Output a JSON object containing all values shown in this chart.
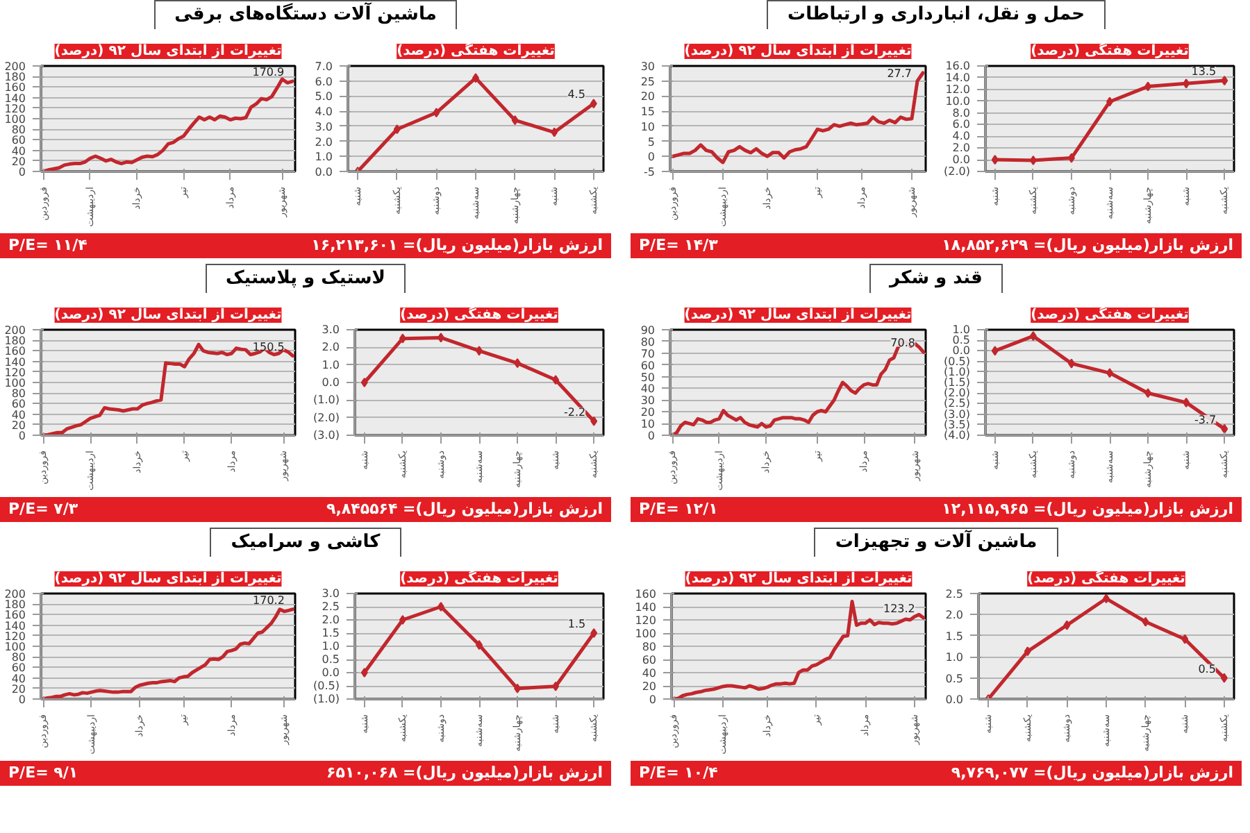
{
  "chart_data": [
    {
      "type": "other",
      "title": "حمل و نقل، انبارداری و ارتباطات",
      "annotations": [
        "ارزش بازار(میلیون ریال)= ۱۸,۸۵۲,۶۲۹",
        "P/E= ۱۴/۳"
      ]
    },
    {
      "type": "line",
      "title": "تغییرات هفتگی (درصد)",
      "categories": [
        "شنبه",
        "یکشنبه",
        "دوشنبه",
        "سه‌شنبه",
        "چهارشنبه",
        "شنبه",
        "یکشنبه"
      ],
      "values": [
        0.0,
        -0.1,
        0.3,
        9.9,
        12.5,
        13.0,
        13.5
      ],
      "value_labels": [
        null,
        null,
        null,
        null,
        null,
        null,
        "13.5"
      ],
      "color": "#c1272d",
      "ylim": [
        -2,
        16
      ],
      "yticks": [
        {
          "value": -2,
          "label": "(2.0)"
        },
        {
          "value": 0,
          "label": "0.0"
        },
        {
          "value": 2,
          "label": "2.0"
        },
        {
          "value": 4,
          "label": "4.0"
        },
        {
          "value": 6,
          "label": "6.0"
        },
        {
          "value": 8,
          "label": "8.0"
        },
        {
          "value": 10,
          "label": "10.0"
        },
        {
          "value": 12,
          "label": "12.0"
        },
        {
          "value": 14,
          "label": "14.0"
        },
        {
          "value": 16,
          "label": "16.0"
        }
      ],
      "grid": "y",
      "marker": "diamond"
    },
    {
      "type": "line",
      "title": "تغییرات از ابتدای سال ۹۲ (درصد)",
      "categories": [
        "فروردین",
        null,
        null,
        null,
        null,
        null,
        null,
        null,
        null,
        "اردیبهشت",
        null,
        null,
        null,
        null,
        null,
        null,
        null,
        "خرداد",
        null,
        null,
        null,
        null,
        null,
        null,
        null,
        null,
        "تیر",
        null,
        null,
        null,
        null,
        null,
        null,
        null,
        "مرداد",
        null,
        null,
        null,
        null,
        null,
        null,
        null,
        null,
        "شهریور",
        null,
        null
      ],
      "values": [
        0,
        0.5,
        1,
        1,
        2,
        3.8,
        2,
        1.5,
        -0.5,
        -2,
        1.5,
        2,
        3.2,
        2,
        1.2,
        2.5,
        1,
        0,
        1.3,
        1.3,
        -0.5,
        1.5,
        2.2,
        2.5,
        3.2,
        6,
        9,
        8.5,
        9,
        10.5,
        10,
        10.5,
        11,
        10.5,
        10.7,
        11,
        13,
        11.5,
        11,
        12,
        11.2,
        13,
        12.3,
        12.5,
        25,
        27.7
      ],
      "color": "#c1272d",
      "ylim": [
        -5,
        30
      ],
      "yticks": [
        -5,
        0,
        5,
        10,
        15,
        20,
        25,
        30
      ],
      "grid": "y",
      "marker": "none",
      "value_labels": [
        null,
        null,
        null,
        null,
        null,
        null,
        null,
        null,
        null,
        null,
        null,
        null,
        null,
        null,
        null,
        null,
        null,
        null,
        null,
        null,
        null,
        null,
        null,
        null,
        null,
        null,
        null,
        null,
        null,
        null,
        null,
        null,
        null,
        null,
        null,
        null,
        null,
        null,
        null,
        null,
        null,
        null,
        null,
        null,
        null,
        "27.7"
      ]
    },
    {
      "type": "other",
      "title": "ماشین آلات دستگاه‌های برقی",
      "annotations": [
        "ارزش بازار(میلیون ریال)= ۱۶,۲۱۳,۶۰۱",
        "P/E= ۱۱/۴"
      ]
    },
    {
      "type": "line",
      "title": "تغییرات هفتگی (درصد)",
      "categories": [
        "شنبه",
        "یکشنبه",
        "دوشنبه",
        "سه‌شنبه",
        "چهارشنبه",
        "شنبه",
        "یکشنبه"
      ],
      "values": [
        0.0,
        2.8,
        3.9,
        6.2,
        3.4,
        2.6,
        4.5
      ],
      "value_labels": [
        null,
        null,
        null,
        null,
        null,
        null,
        "4.5"
      ],
      "color": "#c1272d",
      "ylim": [
        0,
        7
      ],
      "yticks": [
        {
          "value": 0,
          "label": "0.0"
        },
        {
          "value": 1,
          "label": "1.0"
        },
        {
          "value": 2,
          "label": "2.0"
        },
        {
          "value": 3,
          "label": "3.0"
        },
        {
          "value": 4,
          "label": "4.0"
        },
        {
          "value": 5,
          "label": "5.0"
        },
        {
          "value": 6,
          "label": "6.0"
        },
        {
          "value": 7,
          "label": "7.0"
        }
      ],
      "grid": "y",
      "marker": "diamond"
    },
    {
      "type": "line",
      "title": "تغییرات از ابتدای سال ۹۲ (درصد)",
      "categories": [
        "فروردین",
        null,
        null,
        null,
        null,
        null,
        null,
        null,
        null,
        "اردیبهشت",
        null,
        null,
        null,
        null,
        null,
        null,
        null,
        null,
        "خرداد",
        null,
        null,
        null,
        null,
        null,
        null,
        null,
        null,
        "تیر",
        null,
        null,
        null,
        null,
        null,
        null,
        null,
        null,
        "مرداد",
        null,
        null,
        null,
        null,
        null,
        null,
        null,
        null,
        null,
        "شهریور",
        null,
        null
      ],
      "values": [
        0,
        3,
        5,
        7,
        12,
        14,
        15,
        15,
        18,
        25,
        29,
        25,
        20,
        23,
        18,
        15,
        18,
        17,
        22,
        27,
        29,
        28,
        32,
        40,
        52,
        55,
        62,
        67,
        80,
        92,
        103,
        98,
        103,
        98,
        105,
        103,
        98,
        101,
        100,
        102,
        122,
        128,
        138,
        136,
        142,
        158,
        175,
        168,
        170.9
      ],
      "color": "#c1272d",
      "ylim": [
        0,
        200
      ],
      "yticks": [
        0,
        20,
        40,
        60,
        80,
        100,
        120,
        140,
        160,
        180,
        200
      ],
      "grid": "y",
      "marker": "none",
      "value_labels": [
        null,
        null,
        null,
        null,
        null,
        null,
        null,
        null,
        null,
        null,
        null,
        null,
        null,
        null,
        null,
        null,
        null,
        null,
        null,
        null,
        null,
        null,
        null,
        null,
        null,
        null,
        null,
        null,
        null,
        null,
        null,
        null,
        null,
        null,
        null,
        null,
        null,
        null,
        null,
        null,
        null,
        null,
        null,
        null,
        null,
        null,
        null,
        null,
        "170.9"
      ]
    },
    {
      "type": "other",
      "title": "قند و شکر",
      "annotations": [
        "ارزش بازار(میلیون ریال)= ۱۲,۱۱۵,۹۶۵",
        "P/E= ۱۲/۱"
      ]
    },
    {
      "type": "line",
      "title": "تغییرات هفتگی (درصد)",
      "categories": [
        "شنبه",
        "یکشنبه",
        "دوشنبه",
        "سه‌شنبه",
        "چهارشنبه",
        "شنبه",
        "یکشنبه"
      ],
      "values": [
        0.0,
        0.7,
        -0.6,
        -1.05,
        -2.0,
        -2.45,
        -3.7
      ],
      "value_labels": [
        null,
        null,
        null,
        null,
        null,
        null,
        "-3.7"
      ],
      "color": "#c1272d",
      "ylim": [
        -4,
        1
      ],
      "yticks": [
        {
          "value": -4,
          "label": "(4.0)"
        },
        {
          "value": -3.5,
          "label": "(3.5)"
        },
        {
          "value": -3,
          "label": "(3.0)"
        },
        {
          "value": -2.5,
          "label": "(2.5)"
        },
        {
          "value": -2,
          "label": "(2.0)"
        },
        {
          "value": -1.5,
          "label": "(1.5)"
        },
        {
          "value": -1,
          "label": "(1.0)"
        },
        {
          "value": -0.5,
          "label": "(0.5)"
        },
        {
          "value": 0,
          "label": "0.0"
        },
        {
          "value": 0.5,
          "label": "0.5"
        },
        {
          "value": 1,
          "label": "1.0"
        }
      ],
      "grid": "y",
      "marker": "diamond"
    },
    {
      "type": "line",
      "title": "تغییرات از ابتدای سال ۹۲ (درصد)",
      "categories": [
        "فروردین",
        null,
        null,
        null,
        null,
        null,
        null,
        null,
        null,
        null,
        null,
        "اردیبهشت",
        null,
        null,
        null,
        null,
        null,
        null,
        null,
        null,
        null,
        null,
        "خرداد",
        null,
        null,
        null,
        null,
        null,
        null,
        null,
        null,
        null,
        null,
        null,
        "تیر",
        null,
        null,
        null,
        null,
        null,
        null,
        null,
        null,
        null,
        null,
        "مرداد",
        null,
        null,
        null,
        null,
        null,
        null,
        null,
        null,
        null,
        null,
        null,
        "شهریور",
        null,
        null
      ],
      "values": [
        0,
        2,
        8,
        11,
        10,
        9,
        14,
        13,
        11,
        11,
        13,
        14,
        21,
        17,
        15,
        13,
        15,
        11,
        9,
        8,
        7,
        10,
        7,
        8,
        13,
        14,
        15,
        15,
        15,
        14,
        14,
        13,
        11,
        17,
        20,
        21,
        20,
        25,
        30,
        38,
        45,
        42,
        38,
        36,
        40,
        43,
        44,
        43,
        43,
        52,
        56,
        64,
        66,
        75,
        81,
        79,
        76,
        78,
        75,
        70.8
      ],
      "color": "#c1272d",
      "ylim": [
        0,
        90
      ],
      "yticks": [
        0,
        10,
        20,
        30,
        40,
        50,
        60,
        70,
        80,
        90
      ],
      "grid": "y",
      "marker": "none",
      "value_labels": [
        null,
        null,
        null,
        null,
        null,
        null,
        null,
        null,
        null,
        null,
        null,
        null,
        null,
        null,
        null,
        null,
        null,
        null,
        null,
        null,
        null,
        null,
        null,
        null,
        null,
        null,
        null,
        null,
        null,
        null,
        null,
        null,
        null,
        null,
        null,
        null,
        null,
        null,
        null,
        null,
        null,
        null,
        null,
        null,
        null,
        null,
        null,
        null,
        null,
        null,
        null,
        null,
        null,
        null,
        null,
        null,
        null,
        null,
        null,
        "70.8"
      ]
    },
    {
      "type": "other",
      "title": "لاستیک و پلاستیک",
      "annotations": [
        "ارزش بازار(میلیون ریال)= ۹,۸۴۵۵۶۴",
        "P/E= ۷/۳"
      ]
    },
    {
      "type": "line",
      "title": "تغییرات هفتگی (درصد)",
      "categories": [
        "شنبه",
        "یکشنبه",
        "دوشنبه",
        "سه‌شنبه",
        "چهارشنبه",
        "شنبه",
        "یکشنبه"
      ],
      "values": [
        0.0,
        2.5,
        2.55,
        1.8,
        1.1,
        0.15,
        -2.2
      ],
      "value_labels": [
        null,
        null,
        null,
        null,
        null,
        null,
        "-2.2"
      ],
      "color": "#c1272d",
      "ylim": [
        -3,
        3
      ],
      "yticks": [
        {
          "value": -3,
          "label": "(3.0)"
        },
        {
          "value": -2,
          "label": "(2.0)"
        },
        {
          "value": -1,
          "label": "(1.0)"
        },
        {
          "value": 0,
          "label": "0.0"
        },
        {
          "value": 1,
          "label": "1.0"
        },
        {
          "value": 2,
          "label": "2.0"
        },
        {
          "value": 3,
          "label": "3.0"
        }
      ],
      "grid": "y",
      "marker": "diamond"
    },
    {
      "type": "line",
      "title": "تغییرات از ابتدای سال ۹۲ (درصد)",
      "categories": [
        "فروردین",
        null,
        null,
        null,
        null,
        null,
        null,
        null,
        null,
        null,
        "اردیبهشت",
        null,
        null,
        null,
        null,
        null,
        null,
        null,
        null,
        null,
        "خرداد",
        null,
        null,
        null,
        null,
        null,
        null,
        null,
        null,
        null,
        "تیر",
        null,
        null,
        null,
        null,
        null,
        null,
        null,
        null,
        null,
        "مرداد",
        null,
        null,
        null,
        null,
        null,
        null,
        null,
        null,
        null,
        null,
        "شهریور",
        null,
        null
      ],
      "values": [
        0,
        1,
        3,
        5,
        5,
        12,
        15,
        18,
        20,
        26,
        32,
        35,
        38,
        52,
        50,
        49,
        48,
        46,
        48,
        50,
        50,
        57,
        60,
        62,
        65,
        67,
        137,
        136,
        135,
        135,
        130,
        145,
        155,
        172,
        160,
        157,
        156,
        155,
        157,
        153,
        155,
        165,
        163,
        162,
        153,
        155,
        158,
        165,
        157,
        153,
        155,
        162,
        158,
        150.5
      ],
      "color": "#c1272d",
      "ylim": [
        0,
        200
      ],
      "yticks": [
        0,
        20,
        40,
        60,
        80,
        100,
        120,
        140,
        160,
        180,
        200
      ],
      "grid": "y",
      "marker": "none",
      "value_labels": [
        null,
        null,
        null,
        null,
        null,
        null,
        null,
        null,
        null,
        null,
        null,
        null,
        null,
        null,
        null,
        null,
        null,
        null,
        null,
        null,
        null,
        null,
        null,
        null,
        null,
        null,
        null,
        null,
        null,
        null,
        null,
        null,
        null,
        null,
        null,
        null,
        null,
        null,
        null,
        null,
        null,
        null,
        null,
        null,
        null,
        null,
        null,
        null,
        null,
        null,
        null,
        null,
        null,
        "150.5"
      ]
    },
    {
      "type": "other",
      "title": "ماشین آلات و تجهیزات",
      "annotations": [
        "ارزش بازار(میلیون ریال)= ۹,۷۶۹,۰۷۷",
        "P/E= ۱۰/۴"
      ]
    },
    {
      "type": "line",
      "title": "تغییرات هفتگی (درصد)",
      "categories": [
        "شنبه",
        "یکشنبه",
        "دوشنبه",
        "سه‌شنبه",
        "چهارشنبه",
        "شنبه",
        "یکشنبه"
      ],
      "values": [
        0.0,
        1.13,
        1.75,
        2.38,
        1.83,
        1.42,
        0.5
      ],
      "value_labels": [
        null,
        null,
        null,
        null,
        null,
        null,
        "0.5"
      ],
      "color": "#c1272d",
      "ylim": [
        0,
        2.5
      ],
      "yticks": [
        {
          "value": 0,
          "label": "0.0"
        },
        {
          "value": 0.5,
          "label": "0.5"
        },
        {
          "value": 1,
          "label": "1.0"
        },
        {
          "value": 1.5,
          "label": "1.5"
        },
        {
          "value": 2,
          "label": "2.0"
        },
        {
          "value": 2.5,
          "label": "2.5"
        }
      ],
      "grid": "y",
      "marker": "diamond"
    },
    {
      "type": "line",
      "title": "تغییرات از ابتدای سال ۹۲ (درصد)",
      "categories": [
        "فروردین",
        null,
        null,
        null,
        null,
        null,
        null,
        null,
        null,
        null,
        null,
        "اردیبهشت",
        null,
        null,
        null,
        null,
        null,
        null,
        null,
        null,
        null,
        "خرداد",
        null,
        null,
        null,
        null,
        null,
        null,
        null,
        null,
        null,
        null,
        "تیر",
        null,
        null,
        null,
        null,
        null,
        null,
        null,
        null,
        null,
        null,
        "مرداد",
        null,
        null,
        null,
        null,
        null,
        null,
        null,
        null,
        null,
        null,
        "شهریور",
        null,
        null
      ],
      "values": [
        0,
        1,
        5,
        7,
        8,
        10,
        11,
        13,
        14,
        15,
        17,
        19,
        20,
        20,
        19,
        18,
        17,
        20,
        18,
        15,
        16,
        18,
        21,
        23,
        23,
        24,
        23,
        24,
        40,
        44,
        44,
        50,
        52,
        56,
        60,
        63,
        75,
        85,
        95,
        96,
        148,
        112,
        115,
        115,
        120,
        113,
        116,
        115,
        115,
        114,
        115,
        118,
        121,
        120,
        125,
        128,
        123.2
      ],
      "color": "#c1272d",
      "ylim": [
        0,
        160
      ],
      "yticks": [
        0,
        20,
        40,
        60,
        80,
        100,
        120,
        140,
        160
      ],
      "grid": "y",
      "marker": "none",
      "value_labels": [
        null,
        null,
        null,
        null,
        null,
        null,
        null,
        null,
        null,
        null,
        null,
        null,
        null,
        null,
        null,
        null,
        null,
        null,
        null,
        null,
        null,
        null,
        null,
        null,
        null,
        null,
        null,
        null,
        null,
        null,
        null,
        null,
        null,
        null,
        null,
        null,
        null,
        null,
        null,
        null,
        null,
        null,
        null,
        null,
        null,
        null,
        null,
        null,
        null,
        null,
        null,
        null,
        null,
        null,
        null,
        null,
        "123.2"
      ]
    },
    {
      "type": "other",
      "title": "کاشی و سرامیک",
      "annotations": [
        "ارزش بازار(میلیون ریال)= ۶۵۱۰,۰۶۸",
        "P/E= ۹/۱"
      ]
    },
    {
      "type": "line",
      "title": "تغییرات هفتگی (درصد)",
      "categories": [
        "شنبه",
        "یکشنبه",
        "دوشنبه",
        "سه‌شنبه",
        "چهارشنبه",
        "شنبه",
        "یکشنبه"
      ],
      "values": [
        0.0,
        2.0,
        2.5,
        1.05,
        -0.6,
        -0.52,
        1.5
      ],
      "value_labels": [
        null,
        null,
        null,
        null,
        null,
        null,
        "1.5"
      ],
      "color": "#c1272d",
      "ylim": [
        -1,
        3
      ],
      "yticks": [
        {
          "value": -1,
          "label": "(1.0)"
        },
        {
          "value": -0.5,
          "label": "(0.5)"
        },
        {
          "value": 0,
          "label": "0.0"
        },
        {
          "value": 0.5,
          "label": "0.5"
        },
        {
          "value": 1,
          "label": "1.0"
        },
        {
          "value": 1.5,
          "label": "1.5"
        },
        {
          "value": 2,
          "label": "2.0"
        },
        {
          "value": 2.5,
          "label": "2.5"
        },
        {
          "value": 3,
          "label": "3.0"
        }
      ],
      "grid": "y",
      "marker": "diamond"
    },
    {
      "type": "line",
      "title": "تغییرات از ابتدای سال ۹۲ (درصد)",
      "categories": [
        "فروردین",
        null,
        null,
        null,
        null,
        null,
        null,
        null,
        null,
        null,
        null,
        "اردیبهشت",
        null,
        null,
        null,
        null,
        null,
        null,
        null,
        null,
        null,
        null,
        "خرداد",
        null,
        null,
        null,
        null,
        null,
        null,
        null,
        null,
        null,
        "تیر",
        null,
        null,
        null,
        null,
        null,
        null,
        null,
        null,
        null,
        null,
        "مرداد",
        null,
        null,
        null,
        null,
        null,
        null,
        null,
        null,
        null,
        null,
        null,
        "شهریور",
        null,
        null
      ],
      "values": [
        0,
        2,
        3,
        5,
        5,
        8,
        10,
        8,
        9,
        12,
        11,
        13,
        15,
        16,
        15,
        14,
        13,
        13,
        14,
        14,
        14,
        22,
        26,
        28,
        30,
        31,
        31,
        33,
        34,
        35,
        33,
        40,
        42,
        43,
        50,
        55,
        60,
        65,
        75,
        76,
        75,
        80,
        90,
        92,
        95,
        104,
        106,
        105,
        115,
        125,
        127,
        135,
        143,
        155,
        170,
        166,
        168,
        170.2
      ],
      "color": "#c1272d",
      "ylim": [
        0,
        200
      ],
      "yticks": [
        0,
        20,
        40,
        60,
        80,
        100,
        120,
        140,
        160,
        180,
        200
      ],
      "grid": "y",
      "marker": "none",
      "value_labels": [
        null,
        null,
        null,
        null,
        null,
        null,
        null,
        null,
        null,
        null,
        null,
        null,
        null,
        null,
        null,
        null,
        null,
        null,
        null,
        null,
        null,
        null,
        null,
        null,
        null,
        null,
        null,
        null,
        null,
        null,
        null,
        null,
        null,
        null,
        null,
        null,
        null,
        null,
        null,
        null,
        null,
        null,
        null,
        null,
        null,
        null,
        null,
        null,
        null,
        null,
        null,
        null,
        null,
        null,
        null,
        null,
        null,
        "170.2"
      ]
    }
  ]
}
